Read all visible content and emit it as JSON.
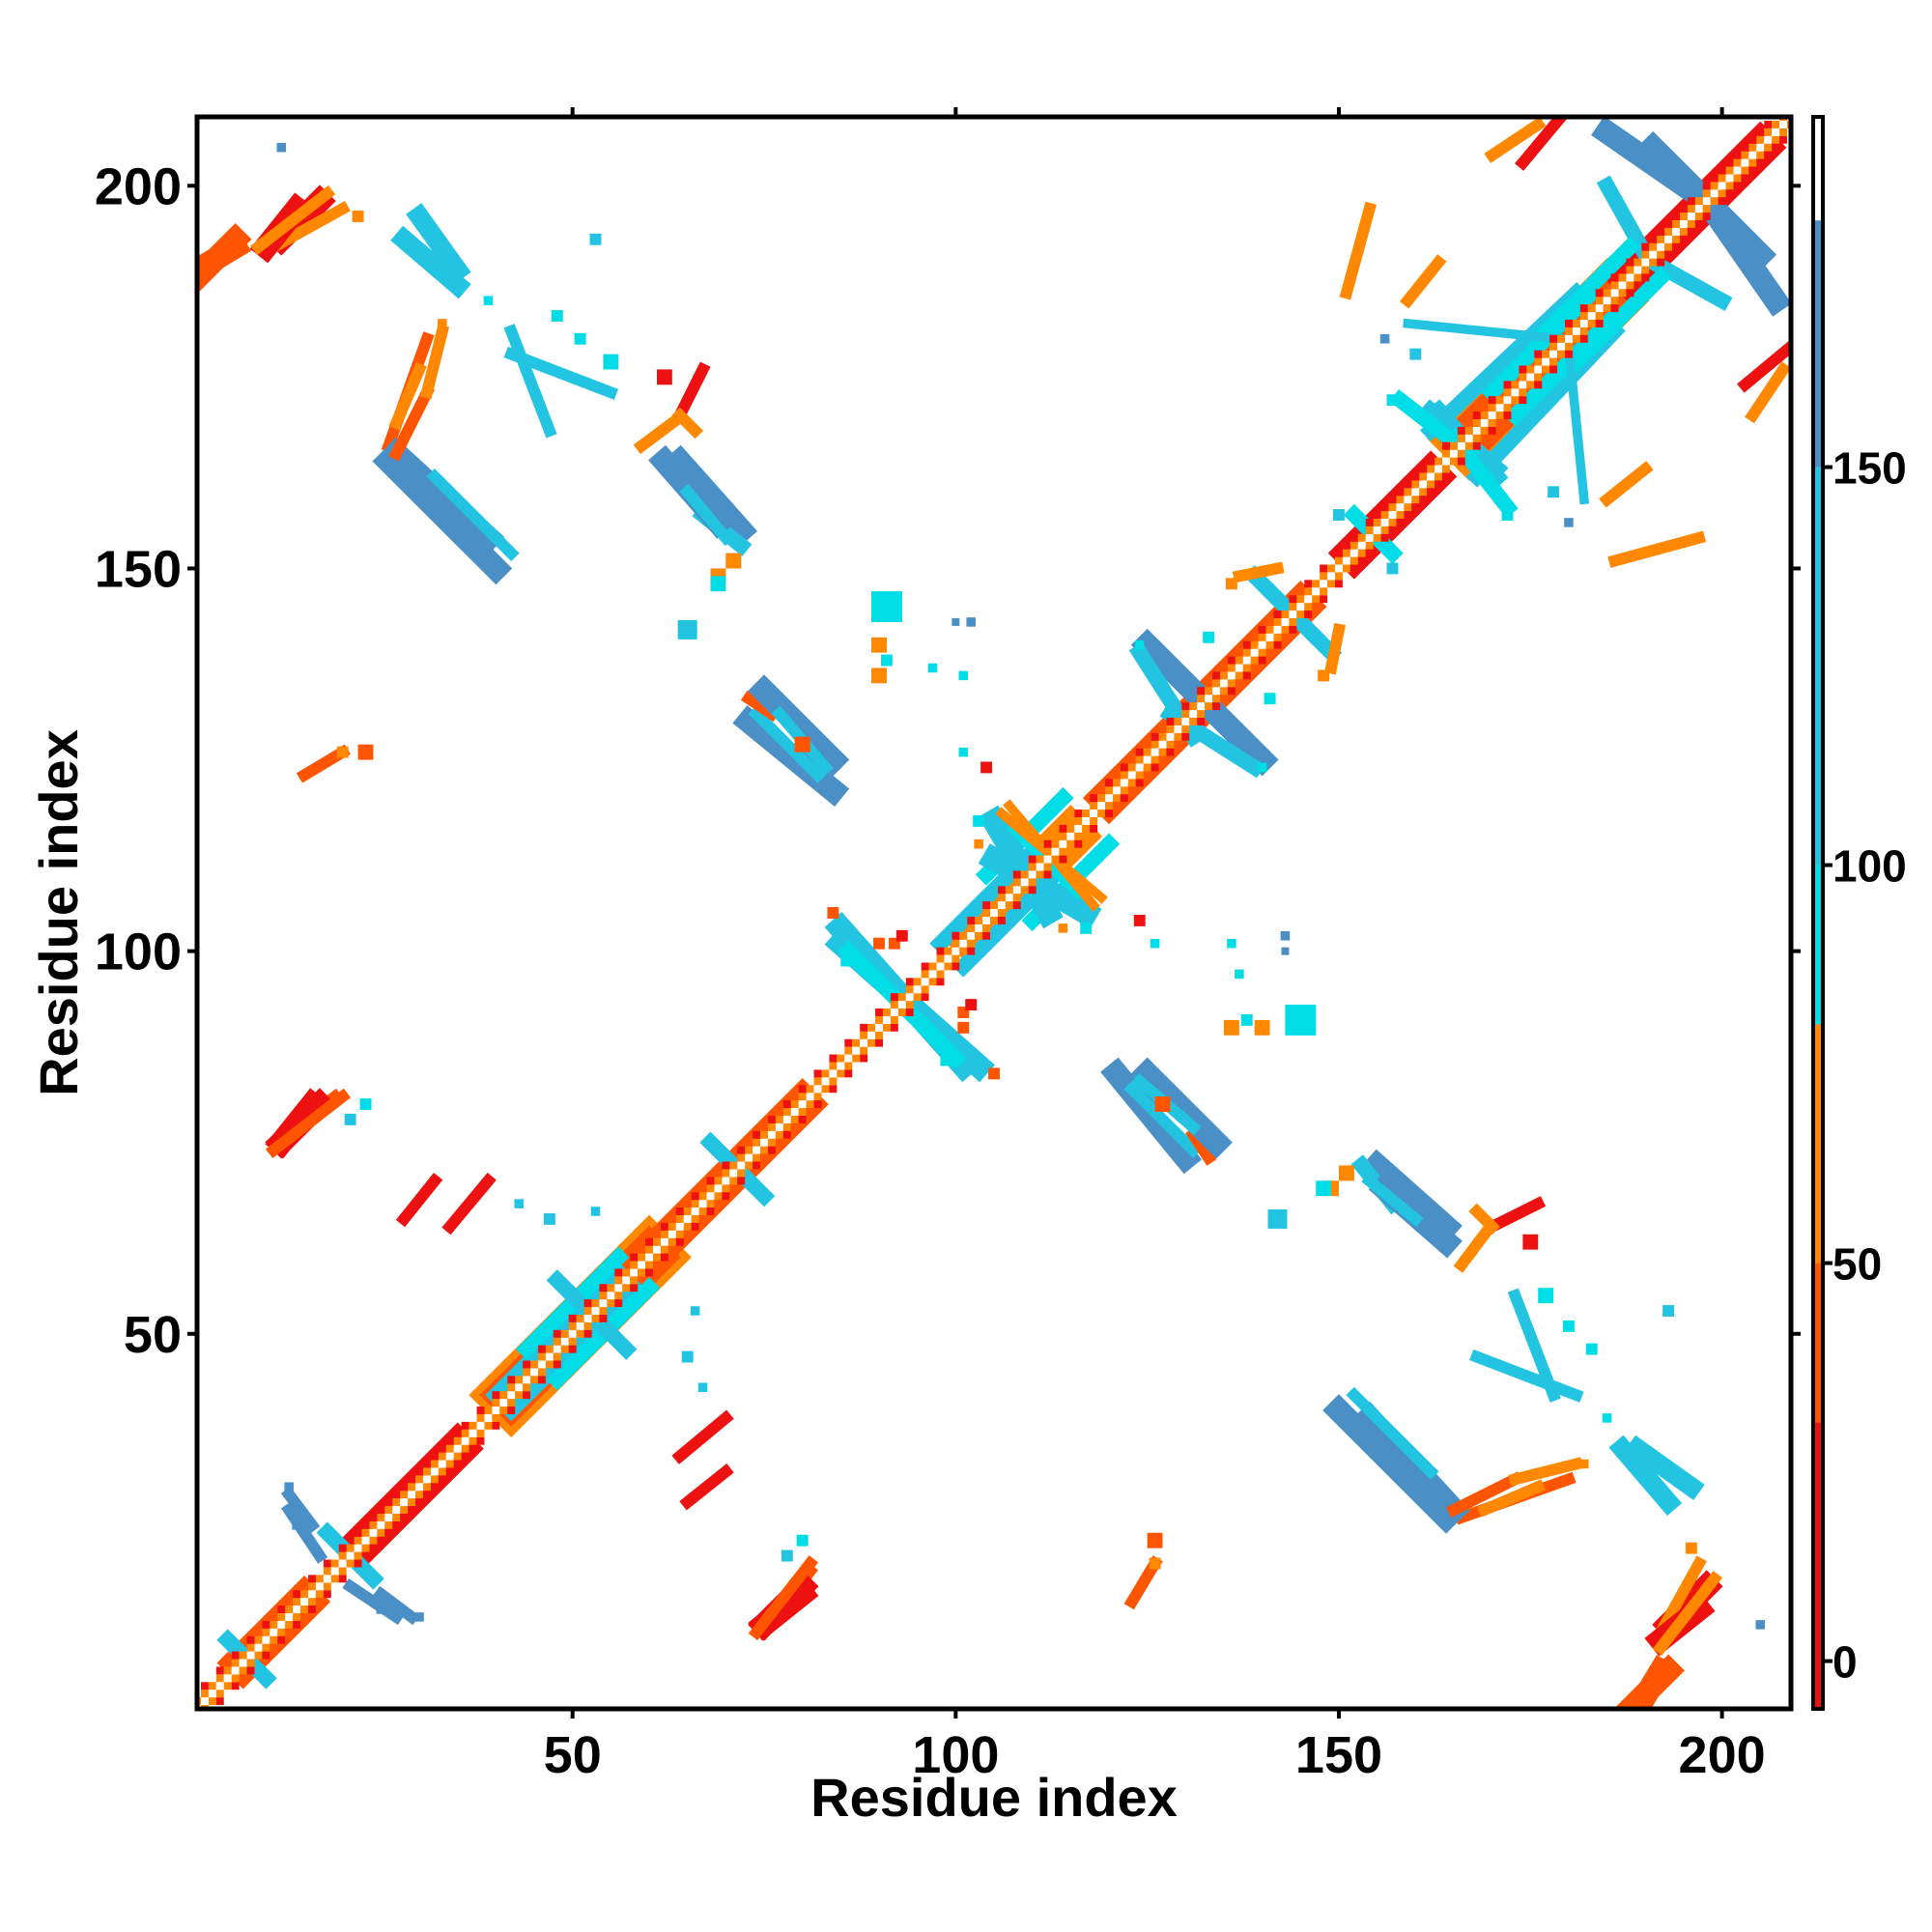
{
  "chart_data": {
    "type": "heatmap",
    "title": "",
    "xlabel": "Residue index",
    "ylabel": "Residue index",
    "xlim": [
      1,
      209
    ],
    "ylim": [
      1,
      209
    ],
    "x_ticks": [
      50,
      100,
      150,
      200
    ],
    "y_ticks": [
      50,
      100,
      150,
      200
    ],
    "grid": false,
    "symmetric": true,
    "colorbar": {
      "ticks": [
        0,
        50,
        100,
        150
      ],
      "range": [
        -6,
        194
      ],
      "bands": [
        {
          "from": -6,
          "to": 30,
          "color": "#ee1111"
        },
        {
          "from": 30,
          "to": 50,
          "color": "#ff5500"
        },
        {
          "from": 50,
          "to": 80,
          "color": "#ff8800"
        },
        {
          "from": 80,
          "to": 100,
          "color": "#00dde6"
        },
        {
          "from": 100,
          "to": 150,
          "color": "#22c4e2"
        },
        {
          "from": 150,
          "to": 181,
          "color": "#4a8fc6"
        },
        {
          "from": 181,
          "to": 194,
          "color": "#ffffff"
        }
      ]
    },
    "diagonal_pattern": [
      "#ffffff",
      "#ff8800",
      "#ee1111"
    ],
    "segments": [
      {
        "x1": 165,
        "y1": 167,
        "x2": 185,
        "y2": 187,
        "w": 5,
        "color": "#ff8800"
      },
      {
        "x1": 165,
        "y1": 167,
        "x2": 185,
        "y2": 187,
        "w": 3,
        "color": "#ff5500"
      },
      {
        "x1": 40,
        "y1": 42,
        "x2": 60,
        "y2": 62,
        "w": 5,
        "color": "#ff8800"
      },
      {
        "x1": 40,
        "y1": 42,
        "x2": 60,
        "y2": 62,
        "w": 3,
        "color": "#ff5500"
      },
      {
        "x1": 100,
        "y1": 102,
        "x2": 115,
        "y2": 117,
        "w": 3,
        "color": "#ff8800"
      },
      {
        "x1": 5,
        "y1": 7,
        "x2": 15,
        "y2": 17,
        "w": 2,
        "color": "#ff5500"
      },
      {
        "x1": 20,
        "y1": 22,
        "x2": 35,
        "y2": 37,
        "w": 2,
        "color": "#ee1111"
      },
      {
        "x1": 60,
        "y1": 62,
        "x2": 80,
        "y2": 82,
        "w": 2,
        "color": "#ff5500"
      },
      {
        "x1": 118,
        "y1": 120,
        "x2": 145,
        "y2": 147,
        "w": 2,
        "color": "#ff5500"
      },
      {
        "x1": 150,
        "y1": 152,
        "x2": 162,
        "y2": 164,
        "w": 2,
        "color": "#ee1111"
      },
      {
        "x1": 186,
        "y1": 188,
        "x2": 205,
        "y2": 207,
        "w": 2,
        "color": "#ee1111"
      },
      {
        "x1": 168,
        "y1": 162,
        "x2": 186,
        "y2": 181,
        "w": 2,
        "color": "#22c4e2"
      },
      {
        "x1": 170,
        "y1": 173,
        "x2": 183,
        "y2": 186,
        "w": 2,
        "color": "#00dde6"
      },
      {
        "x1": 42,
        "y1": 40,
        "x2": 58,
        "y2": 56,
        "w": 2,
        "color": "#22c4e2"
      },
      {
        "x1": 44,
        "y1": 48,
        "x2": 56,
        "y2": 60,
        "w": 2,
        "color": "#00dde6"
      },
      {
        "x1": 101,
        "y1": 98,
        "x2": 113,
        "y2": 110,
        "w": 2,
        "color": "#22c4e2"
      },
      {
        "x1": 104,
        "y1": 110,
        "x2": 114,
        "y2": 120,
        "w": 2,
        "color": "#00dde6"
      },
      {
        "x1": 191,
        "y1": 205,
        "x2": 203,
        "y2": 193,
        "w": 3,
        "color": "#4a8fc6"
      },
      {
        "x1": 198,
        "y1": 198,
        "x2": 207,
        "y2": 185,
        "w": 3,
        "color": "#4a8fc6"
      },
      {
        "x1": 185,
        "y1": 200,
        "x2": 190,
        "y2": 191,
        "w": 2,
        "color": "#22c4e2"
      },
      {
        "x1": 180,
        "y1": 176,
        "x2": 192,
        "y2": 188,
        "w": 2,
        "color": "#00dde6"
      },
      {
        "x1": 163,
        "y1": 170,
        "x2": 170,
        "y2": 162,
        "w": 3,
        "color": "#22c4e2"
      },
      {
        "x1": 165,
        "y1": 167,
        "x2": 172,
        "y2": 158,
        "w": 2,
        "color": "#00dde6"
      },
      {
        "x1": 152,
        "y1": 157,
        "x2": 156,
        "y2": 153,
        "w": 2,
        "color": "#00dde6"
      },
      {
        "x1": 141,
        "y1": 147,
        "x2": 149,
        "y2": 139,
        "w": 2,
        "color": "#22c4e2"
      },
      {
        "x1": 126,
        "y1": 139,
        "x2": 140,
        "y2": 125,
        "w": 3,
        "color": "#4a8fc6"
      },
      {
        "x1": 128,
        "y1": 131,
        "x2": 139,
        "y2": 124,
        "w": 2,
        "color": "#22c4e2"
      },
      {
        "x1": 105,
        "y1": 112,
        "x2": 117,
        "y2": 105,
        "w": 3,
        "color": "#22c4e2"
      },
      {
        "x1": 108,
        "y1": 116,
        "x2": 112,
        "y2": 112,
        "w": 2,
        "color": "#00dde6"
      },
      {
        "x1": 85,
        "y1": 101,
        "x2": 103,
        "y2": 85,
        "w": 3,
        "color": "#22c4e2"
      },
      {
        "x1": 88,
        "y1": 98,
        "x2": 100,
        "y2": 86,
        "w": 2,
        "color": "#00dde6"
      },
      {
        "x1": 50,
        "y1": 55,
        "x2": 57,
        "y2": 48,
        "w": 2,
        "color": "#22c4e2"
      },
      {
        "x1": 68,
        "y1": 75,
        "x2": 72,
        "y2": 71,
        "w": 2,
        "color": "#22c4e2"
      },
      {
        "x1": 18,
        "y1": 24,
        "x2": 24,
        "y2": 18,
        "w": 2,
        "color": "#22c4e2"
      },
      {
        "x1": 21,
        "y1": 17,
        "x2": 27,
        "y2": 13,
        "w": 1.5,
        "color": "#4a8fc6"
      },
      {
        "x1": 13,
        "y1": 29,
        "x2": 16,
        "y2": 25,
        "w": 1.5,
        "color": "#4a8fc6"
      },
      {
        "x1": 5,
        "y1": 10,
        "x2": 10,
        "y2": 5,
        "w": 2,
        "color": "#22c4e2"
      },
      {
        "x1": 26,
        "y1": 164,
        "x2": 40,
        "y2": 150,
        "w": 3,
        "color": "#4a8fc6"
      },
      {
        "x1": 28,
        "y1": 165,
        "x2": 38,
        "y2": 154,
        "w": 1.5,
        "color": "#22c4e2"
      },
      {
        "x1": 26,
        "y1": 166,
        "x2": 31,
        "y2": 180,
        "w": 1.5,
        "color": "#ff5500"
      },
      {
        "x1": 27,
        "y1": 169,
        "x2": 30,
        "y2": 176,
        "w": 1.5,
        "color": "#ff8800"
      },
      {
        "x1": 64,
        "y1": 164,
        "x2": 72,
        "y2": 155,
        "w": 3,
        "color": "#4a8fc6"
      },
      {
        "x1": 67,
        "y1": 157,
        "x2": 72,
        "y2": 153,
        "w": 2,
        "color": "#22c4e2"
      },
      {
        "x1": 64,
        "y1": 170,
        "x2": 67,
        "y2": 176,
        "w": 1.5,
        "color": "#ee1111"
      },
      {
        "x1": 64,
        "y1": 170,
        "x2": 66,
        "y2": 168,
        "w": 1.5,
        "color": "#ff8800"
      },
      {
        "x1": 28,
        "y1": 193,
        "x2": 35,
        "y2": 187,
        "w": 2.5,
        "color": "#22c4e2"
      },
      {
        "x1": 1,
        "y1": 189,
        "x2": 6,
        "y2": 192,
        "w": 3,
        "color": "#ff5500"
      },
      {
        "x1": 12,
        "y1": 193,
        "x2": 17,
        "y2": 198,
        "w": 3,
        "color": "#ee1111"
      },
      {
        "x1": 11,
        "y1": 192,
        "x2": 20,
        "y2": 197,
        "w": 1.5,
        "color": "#ff8800"
      },
      {
        "x1": 42,
        "y1": 178,
        "x2": 55,
        "y2": 173,
        "w": 1.5,
        "color": "#22c4e2"
      },
      {
        "x1": 73,
        "y1": 130,
        "x2": 84,
        "y2": 121,
        "w": 3,
        "color": "#4a8fc6"
      },
      {
        "x1": 74,
        "y1": 131,
        "x2": 82,
        "y2": 123,
        "w": 1.5,
        "color": "#22c4e2"
      },
      {
        "x1": 73,
        "y1": 133,
        "x2": 76,
        "y2": 131,
        "w": 1.5,
        "color": "#ff5500"
      },
      {
        "x1": 125,
        "y1": 84,
        "x2": 134,
        "y2": 75,
        "w": 3,
        "color": "#4a8fc6"
      },
      {
        "x1": 124,
        "y1": 83,
        "x2": 131,
        "y2": 77,
        "w": 1.5,
        "color": "#22c4e2"
      },
      {
        "x1": 156,
        "y1": 69,
        "x2": 164,
        "y2": 62,
        "w": 3,
        "color": "#4a8fc6"
      },
      {
        "x1": 154,
        "y1": 70,
        "x2": 160,
        "y2": 65,
        "w": 1.5,
        "color": "#22c4e2"
      },
      {
        "x1": 154,
        "y1": 39,
        "x2": 165,
        "y2": 27,
        "w": 3,
        "color": "#4a8fc6"
      },
      {
        "x1": 152,
        "y1": 42,
        "x2": 162,
        "y2": 32,
        "w": 1.5,
        "color": "#22c4e2"
      },
      {
        "x1": 165,
        "y1": 27,
        "x2": 173,
        "y2": 31,
        "w": 1.5,
        "color": "#ff5500"
      },
      {
        "x1": 173,
        "y1": 31,
        "x2": 181,
        "y2": 33,
        "w": 1.5,
        "color": "#ff8800"
      },
      {
        "x1": 189,
        "y1": 35,
        "x2": 196,
        "y2": 30,
        "w": 2.5,
        "color": "#22c4e2"
      },
      {
        "x1": 188,
        "y1": 1,
        "x2": 193,
        "y2": 6,
        "w": 3,
        "color": "#ff5500"
      },
      {
        "x1": 192,
        "y1": 10,
        "x2": 197,
        "y2": 14,
        "w": 3,
        "color": "#ee1111"
      },
      {
        "x1": 192,
        "y1": 9,
        "x2": 199,
        "y2": 18,
        "w": 1.5,
        "color": "#ff8800"
      },
      {
        "x1": 75,
        "y1": 12,
        "x2": 80,
        "y2": 16,
        "w": 3,
        "color": "#ee1111"
      },
      {
        "x1": 75,
        "y1": 11,
        "x2": 81,
        "y2": 19,
        "w": 1.5,
        "color": "#ff5500"
      },
      {
        "x1": 12,
        "y1": 75,
        "x2": 17,
        "y2": 80,
        "w": 3,
        "color": "#ee1111"
      },
      {
        "x1": 11,
        "y1": 74,
        "x2": 20,
        "y2": 81,
        "w": 1.5,
        "color": "#ff5500"
      },
      {
        "x1": 168,
        "y1": 47,
        "x2": 181,
        "y2": 42,
        "w": 1.5,
        "color": "#22c4e2"
      },
      {
        "x1": 166,
        "y1": 59,
        "x2": 169,
        "y2": 63,
        "w": 1.5,
        "color": "#ff8800"
      },
      {
        "x1": 70,
        "y1": 39,
        "x2": 64,
        "y2": 34,
        "w": 1.5,
        "color": "#ee1111"
      },
      {
        "x1": 28,
        "y1": 65,
        "x2": 32,
        "y2": 70,
        "w": 1.5,
        "color": "#ee1111"
      },
      {
        "x1": 186,
        "y1": 151,
        "x2": 197,
        "y2": 154,
        "w": 1.5,
        "color": "#ff8800"
      },
      {
        "x1": 204,
        "y1": 170,
        "x2": 208,
        "y2": 176,
        "w": 1.5,
        "color": "#ff8800"
      },
      {
        "x1": 174,
        "y1": 203,
        "x2": 179,
        "y2": 209,
        "w": 1.5,
        "color": "#ee1111"
      },
      {
        "x1": 159,
        "y1": 185,
        "x2": 163,
        "y2": 190,
        "w": 1.5,
        "color": "#ff8800"
      },
      {
        "x1": 159,
        "y1": 182,
        "x2": 179,
        "y2": 180,
        "w": 1.2,
        "color": "#22c4e2"
      },
      {
        "x1": 15,
        "y1": 123,
        "x2": 20,
        "y2": 126,
        "w": 1.5,
        "color": "#ff5500"
      },
      {
        "x1": 137,
        "y1": 149,
        "x2": 142,
        "y2": 150,
        "w": 1.5,
        "color": "#ff8800"
      },
      {
        "x1": 107,
        "y1": 119,
        "x2": 118,
        "y2": 106,
        "w": 1.2,
        "color": "#ff8800"
      }
    ],
    "cells": [
      {
        "x": 91,
        "y": 145,
        "s": 4,
        "color": "#00dde6"
      },
      {
        "x": 65,
        "y": 142,
        "s": 2.5,
        "color": "#22c4e2"
      },
      {
        "x": 69,
        "y": 149,
        "s": 2,
        "color": "#ff8800"
      },
      {
        "x": 71,
        "y": 151,
        "s": 2,
        "color": "#00dde6"
      },
      {
        "x": 90,
        "y": 136,
        "s": 2,
        "color": "#ff8800"
      },
      {
        "x": 91,
        "y": 138,
        "s": 1.5,
        "color": "#00dde6"
      },
      {
        "x": 80,
        "y": 127,
        "s": 2,
        "color": "#ff5500"
      },
      {
        "x": 145,
        "y": 91,
        "s": 4,
        "color": "#00dde6"
      },
      {
        "x": 140,
        "y": 90,
        "s": 2,
        "color": "#ff8800"
      },
      {
        "x": 142,
        "y": 65,
        "s": 2.5,
        "color": "#22c4e2"
      },
      {
        "x": 148,
        "y": 69,
        "s": 2,
        "color": "#00dde6"
      },
      {
        "x": 151,
        "y": 71,
        "s": 2,
        "color": "#ff8800"
      },
      {
        "x": 127,
        "y": 80,
        "s": 2,
        "color": "#ff5500"
      },
      {
        "x": 175,
        "y": 62,
        "s": 2,
        "color": "#ee1111"
      },
      {
        "x": 177,
        "y": 55,
        "s": 2,
        "color": "#00dde6"
      },
      {
        "x": 180,
        "y": 51,
        "s": 1.5,
        "color": "#00dde6"
      },
      {
        "x": 183,
        "y": 48,
        "s": 1.5,
        "color": "#00dde6"
      },
      {
        "x": 126,
        "y": 23,
        "s": 2,
        "color": "#ff5500"
      },
      {
        "x": 126,
        "y": 20,
        "s": 1.5,
        "color": "#ff8800"
      },
      {
        "x": 78,
        "y": 21,
        "s": 1.5,
        "color": "#22c4e2"
      },
      {
        "x": 80,
        "y": 23,
        "s": 1.5,
        "color": "#00dde6"
      },
      {
        "x": 25,
        "y": 14,
        "s": 1.2,
        "color": "#4a8fc6"
      },
      {
        "x": 30,
        "y": 13,
        "s": 1.2,
        "color": "#4a8fc6"
      },
      {
        "x": 43,
        "y": 67,
        "s": 1.2,
        "color": "#22c4e2"
      },
      {
        "x": 47,
        "y": 65,
        "s": 1.5,
        "color": "#22c4e2"
      },
      {
        "x": 53,
        "y": 66,
        "s": 1.2,
        "color": "#22c4e2"
      },
      {
        "x": 53,
        "y": 193,
        "s": 1.5,
        "color": "#22c4e2"
      },
      {
        "x": 39,
        "y": 185,
        "s": 1.2,
        "color": "#00dde6"
      },
      {
        "x": 97,
        "y": 137,
        "s": 1.2,
        "color": "#00dde6"
      },
      {
        "x": 100,
        "y": 143,
        "s": 1,
        "color": "#4a8fc6"
      },
      {
        "x": 126,
        "y": 101,
        "s": 1.2,
        "color": "#00dde6"
      },
      {
        "x": 143,
        "y": 102,
        "s": 1.2,
        "color": "#4a8fc6"
      },
      {
        "x": 136,
        "y": 101,
        "s": 1.2,
        "color": "#00dde6"
      },
      {
        "x": 117,
        "y": 103,
        "s": 1.5,
        "color": "#00dde6"
      },
      {
        "x": 114,
        "y": 103,
        "s": 1.2,
        "color": "#ff8800"
      },
      {
        "x": 180,
        "y": 156,
        "s": 1.2,
        "color": "#4a8fc6"
      },
      {
        "x": 172,
        "y": 157,
        "s": 1.5,
        "color": "#00dde6"
      },
      {
        "x": 182,
        "y": 33,
        "s": 1.2,
        "color": "#ff8800"
      },
      {
        "x": 205,
        "y": 12,
        "s": 1.2,
        "color": "#4a8fc6"
      },
      {
        "x": 196,
        "y": 22,
        "s": 1.5,
        "color": "#ff8800"
      },
      {
        "x": 99,
        "y": 86,
        "s": 2,
        "color": "#00dde6"
      },
      {
        "x": 101,
        "y": 92,
        "s": 1.5,
        "color": "#ff5500"
      },
      {
        "x": 93,
        "y": 102,
        "s": 1.5,
        "color": "#ee1111"
      },
      {
        "x": 90,
        "y": 101,
        "s": 1.5,
        "color": "#ff5500"
      },
      {
        "x": 84,
        "y": 105,
        "s": 1.5,
        "color": "#ff5500"
      },
      {
        "x": 104,
        "y": 124,
        "s": 1.5,
        "color": "#ee1111"
      },
      {
        "x": 133,
        "y": 141,
        "s": 1.5,
        "color": "#00dde6"
      },
      {
        "x": 150,
        "y": 157,
        "s": 1.5,
        "color": "#22c4e2"
      },
      {
        "x": 160,
        "y": 178,
        "s": 1.5,
        "color": "#22c4e2"
      },
      {
        "x": 148,
        "y": 136,
        "s": 1.5,
        "color": "#ff8800"
      },
      {
        "x": 124,
        "y": 140,
        "s": 1.2,
        "color": "#00dde6"
      }
    ]
  }
}
